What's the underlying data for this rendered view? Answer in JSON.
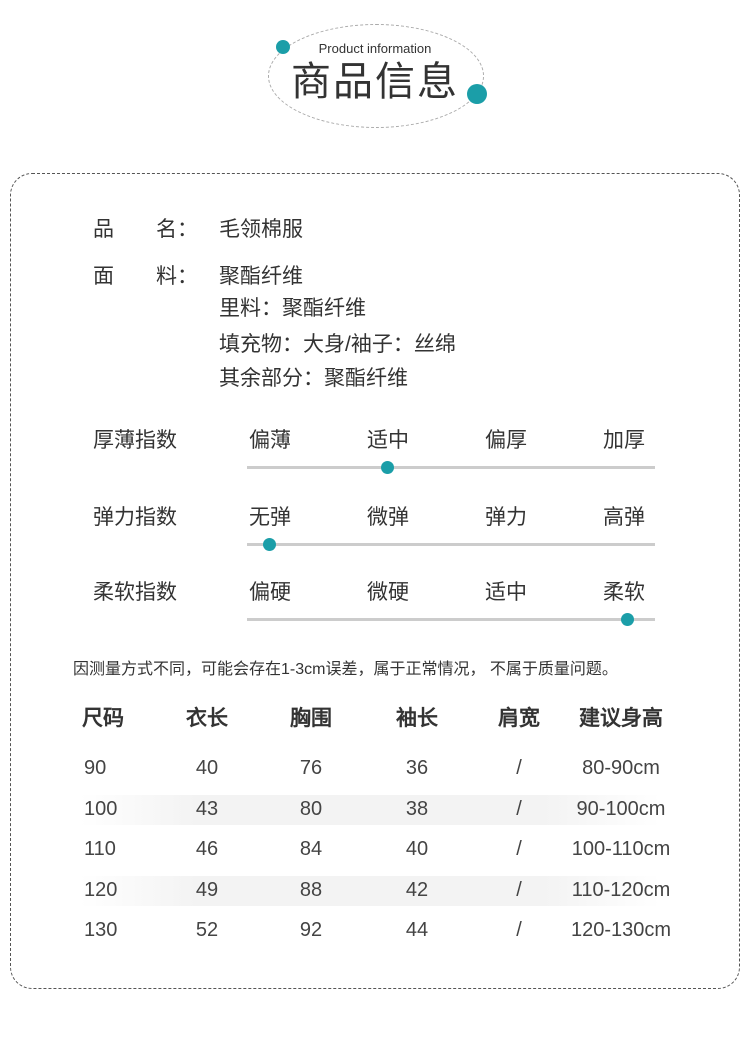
{
  "header": {
    "subtitle": "Product information",
    "title": "商品信息",
    "accent": "#1b9ea8"
  },
  "info": {
    "name_label": "品　　名：",
    "name_value": "毛领棉服",
    "fabric_label": "面　　料：",
    "fabric_value": "聚酯纤维",
    "lining": "里料：聚酯纤维",
    "filling": "填充物：大身/袖子：丝绵",
    "other": "其余部分：聚酯纤维"
  },
  "scales": [
    {
      "label": "厚薄指数",
      "options": [
        "偏薄",
        "适中",
        "偏厚",
        "加厚"
      ],
      "selected_index": 1
    },
    {
      "label": "弹力指数",
      "options": [
        "无弹",
        "微弹",
        "弹力",
        "高弹"
      ],
      "selected_index": 0
    },
    {
      "label": "柔软指数",
      "options": [
        "偏硬",
        "微硬",
        "适中",
        "柔软"
      ],
      "selected_index": 3
    }
  ],
  "note": "因测量方式不同，可能会存在1-3cm误差，属于正常情况， 不属于质量问题。",
  "table": {
    "headers": [
      "尺码",
      "衣长",
      "胸围",
      "袖长",
      "肩宽",
      "建议身高"
    ],
    "rows": [
      [
        "90",
        "40",
        "76",
        "36",
        "/",
        "80-90cm"
      ],
      [
        "100",
        "43",
        "80",
        "38",
        "/",
        "90-100cm"
      ],
      [
        "110",
        "46",
        "84",
        "40",
        "/",
        "100-110cm"
      ],
      [
        "120",
        "49",
        "88",
        "42",
        "/",
        "110-120cm"
      ],
      [
        "130",
        "52",
        "92",
        "44",
        "/",
        "120-130cm"
      ]
    ]
  }
}
